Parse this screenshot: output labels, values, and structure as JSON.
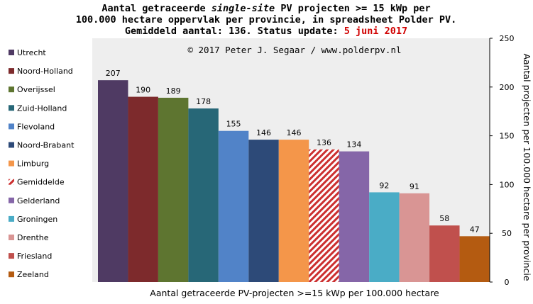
{
  "title": {
    "line1_prefix": "Aantal getraceerde ",
    "line1_italic": "single-site",
    "line1_suffix": " PV projecten >= 15 kWp per",
    "line2": "100.000 hectare oppervlak per provincie, in spreadsheet Polder PV.",
    "line3_prefix": "Gemiddeld aantal: 136. Status update: ",
    "line3_date": "5 juni 2017"
  },
  "copyright": "© 2017 Peter J. Segaar / www.polderpv.nl",
  "colors": {
    "plot_bg": "#eeeeee",
    "highlight": "#d00000"
  },
  "chart_data": {
    "type": "bar",
    "title": "Aantal getraceerde single-site PV projecten >= 15 kWp per 100.000 hectare oppervlak per provincie, in spreadsheet Polder PV. Gemiddeld aantal: 136. Status update: 5 juni 2017",
    "xlabel": "Aantal getraceerde PV-projecten >=15 kWp per 100.000 hectare",
    "ylabel": "Aantal projecten per 100.000 hectare per provincie",
    "ylim": [
      0,
      250
    ],
    "yticks": [
      0,
      50,
      100,
      150,
      200,
      250
    ],
    "y_axis_side": "right",
    "grid": false,
    "legend_position": "left",
    "categories": [
      "Utrecht",
      "Noord-Holland",
      "Overijssel",
      "Zuid-Holland",
      "Flevoland",
      "Noord-Brabant",
      "Limburg",
      "Gemiddelde",
      "Gelderland",
      "Groningen",
      "Drenthe",
      "Friesland",
      "Zeeland"
    ],
    "values": [
      207,
      190,
      189,
      178,
      155,
      146,
      146,
      136,
      134,
      92,
      91,
      58,
      47
    ],
    "colors": [
      "#4f3a63",
      "#7d2a2c",
      "#5e7530",
      "#276777",
      "#5183c8",
      "#2d4a78",
      "#f4964a",
      "#cc2f2f",
      "#8566a8",
      "#4aacc6",
      "#d99594",
      "#c0504d",
      "#b45b11"
    ],
    "hatched": [
      false,
      false,
      false,
      false,
      false,
      false,
      false,
      true,
      false,
      false,
      false,
      false,
      false
    ],
    "label_highlight": [
      false,
      false,
      false,
      false,
      false,
      false,
      false,
      true,
      false,
      false,
      false,
      false,
      false
    ]
  }
}
